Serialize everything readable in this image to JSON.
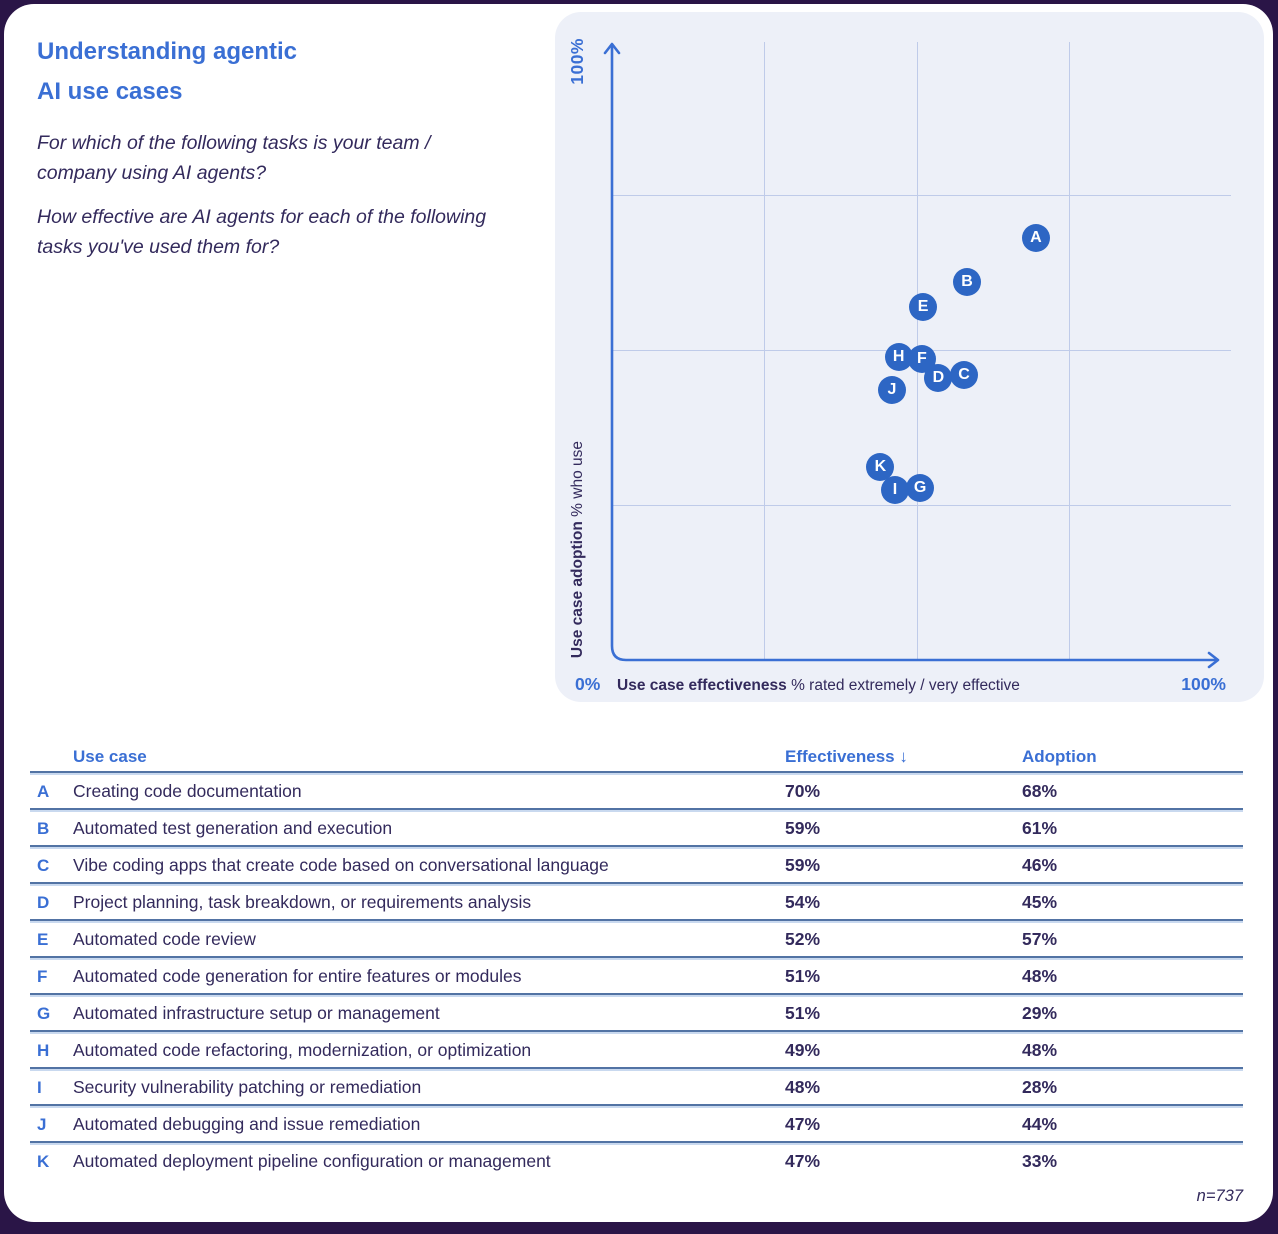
{
  "header": {
    "title_line1": "Understanding agentic",
    "title_line2": "AI use cases",
    "question1": "For which of the following tasks is your team / company using AI agents?",
    "question2": "How effective are AI agents for each of the following tasks you've used them for?"
  },
  "chart": {
    "y_axis_max_label": "100%",
    "y_axis_title_bold": "Use case adoption",
    "y_axis_title_rest": " % who use",
    "x_axis_min_label": "0%",
    "x_axis_title_bold": "Use case effectiveness",
    "x_axis_title_rest": " % rated extremely / very effective",
    "x_axis_max_label": "100%"
  },
  "chart_data": {
    "type": "scatter",
    "title": "Understanding agentic AI use cases",
    "xlabel": "Use case effectiveness (% rated extremely / very effective)",
    "ylabel": "Use case adoption (% who use)",
    "xlim": [
      0,
      100
    ],
    "ylim": [
      0,
      100
    ],
    "grid": "quarter lines at 25/50/75 on both axes",
    "legend_position": "none",
    "points": [
      {
        "label": "A",
        "effectiveness": 70,
        "adoption": 68,
        "render_dx": -0.5,
        "render_dy": 0
      },
      {
        "label": "B",
        "effectiveness": 59,
        "adoption": 61,
        "render_dx": -0.8,
        "render_dy": 0
      },
      {
        "label": "C",
        "effectiveness": 59,
        "adoption": 46,
        "render_dx": -1.3,
        "render_dy": 0
      },
      {
        "label": "D",
        "effectiveness": 54,
        "adoption": 45,
        "render_dx": -0.5,
        "render_dy": 0.5
      },
      {
        "label": "E",
        "effectiveness": 52,
        "adoption": 57,
        "render_dx": -1.0,
        "render_dy": 0
      },
      {
        "label": "F",
        "effectiveness": 51,
        "adoption": 48,
        "render_dx": -0.2,
        "render_dy": 0.5
      },
      {
        "label": "G",
        "effectiveness": 51,
        "adoption": 29,
        "render_dx": -0.5,
        "render_dy": -1.3
      },
      {
        "label": "H",
        "effectiveness": 49,
        "adoption": 48,
        "render_dx": -2.0,
        "render_dy": 0.8
      },
      {
        "label": "I",
        "effectiveness": 48,
        "adoption": 28,
        "render_dx": -1.6,
        "render_dy": -0.5
      },
      {
        "label": "J",
        "effectiveness": 47,
        "adoption": 44,
        "render_dx": -1.1,
        "render_dy": -0.5
      },
      {
        "label": "K",
        "effectiveness": 47,
        "adoption": 33,
        "render_dx": -3.0,
        "render_dy": -1.9
      }
    ]
  },
  "table": {
    "col_use_case": "Use case",
    "col_effectiveness": "Effectiveness",
    "sort_indicator": "↓",
    "col_adoption": "Adoption",
    "rows": [
      {
        "letter": "A",
        "use_case": "Creating code documentation",
        "effectiveness": "70%",
        "adoption": "68%"
      },
      {
        "letter": "B",
        "use_case": "Automated test generation and execution",
        "effectiveness": "59%",
        "adoption": "61%"
      },
      {
        "letter": "C",
        "use_case": "Vibe coding apps that create code based on conversational language",
        "effectiveness": "59%",
        "adoption": "46%"
      },
      {
        "letter": "D",
        "use_case": "Project planning, task breakdown, or requirements analysis",
        "effectiveness": "54%",
        "adoption": "45%"
      },
      {
        "letter": "E",
        "use_case": "Automated code review",
        "effectiveness": "52%",
        "adoption": "57%"
      },
      {
        "letter": "F",
        "use_case": "Automated code generation for entire features or modules",
        "effectiveness": "51%",
        "adoption": "48%"
      },
      {
        "letter": "G",
        "use_case": "Automated infrastructure setup or management",
        "effectiveness": "51%",
        "adoption": "29%"
      },
      {
        "letter": "H",
        "use_case": "Automated code refactoring, modernization, or optimization",
        "effectiveness": "49%",
        "adoption": "48%"
      },
      {
        "letter": "I",
        "use_case": "Security vulnerability patching or remediation",
        "effectiveness": "48%",
        "adoption": "28%"
      },
      {
        "letter": "J",
        "use_case": "Automated debugging and issue remediation",
        "effectiveness": "47%",
        "adoption": "44%"
      },
      {
        "letter": "K",
        "use_case": "Automated deployment pipeline configuration or management",
        "effectiveness": "47%",
        "adoption": "33%"
      }
    ]
  },
  "footnote": "n=737",
  "colors": {
    "accent_blue": "#3a6fd4",
    "marker_blue": "#2d66c4",
    "dark_text": "#332a5c",
    "panel_background": "#edf0f8",
    "gridline": "#bfcbe9",
    "separator": "#5273a4",
    "separator_light": "#c9d9ef",
    "outer_background": "#2a1547",
    "card_background": "#ffffff"
  }
}
